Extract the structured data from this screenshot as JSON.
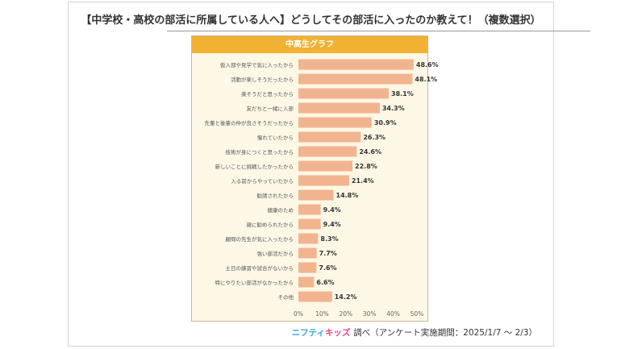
{
  "chart_data": {
    "type": "bar",
    "title": "【中学校・高校の部活に所属している人へ】どうしてその部活に入ったのか教えて！（複数選択）",
    "subtitle": "中高生グラフ",
    "categories": [
      "仮入部や見学で気に入ったから",
      "活動が楽しそうだったから",
      "楽そうだと思ったから",
      "友だちと一緒に入部",
      "先輩と後輩の仲が良さそうだったから",
      "憧れていたから",
      "技術が身につくと思ったから",
      "新しいことに挑戦したかったから",
      "入る前からやっていたから",
      "勧誘されたから",
      "健康のため",
      "親に勧められたから",
      "顧問の先生が気に入ったから",
      "強い部活だから",
      "土日の練習や試合がないから",
      "特にやりたい部活がなかったから",
      "その他"
    ],
    "values": [
      48.6,
      48.1,
      38.1,
      34.3,
      30.9,
      26.3,
      24.6,
      22.8,
      21.4,
      14.8,
      9.4,
      9.4,
      8.3,
      7.7,
      7.6,
      6.6,
      14.2
    ],
    "value_labels": [
      "48.6%",
      "48.1%",
      "38.1%",
      "34.3%",
      "30.9%",
      "26.3%",
      "24.6%",
      "22.8%",
      "21.4%",
      "14.8%",
      "9.4%",
      "9.4%",
      "8.3%",
      "7.7%",
      "7.6%",
      "6.6%",
      "14.2%"
    ],
    "xlim": [
      0,
      50
    ],
    "xticks": [
      "0%",
      "10%",
      "20%",
      "30%",
      "40%",
      "50%"
    ],
    "bar_color": "#f2b48f",
    "orientation": "horizontal",
    "grid": false
  },
  "footer": {
    "brand_part1": "ニフティ",
    "brand_part2": "キッズ",
    "text": "調べ（アンケート実施期間：2025/1/7 ～ 2/3）"
  },
  "colors": {
    "header": "#f1b132",
    "panel_bg": "#fdf7e6",
    "bar": "#f2b48f"
  }
}
